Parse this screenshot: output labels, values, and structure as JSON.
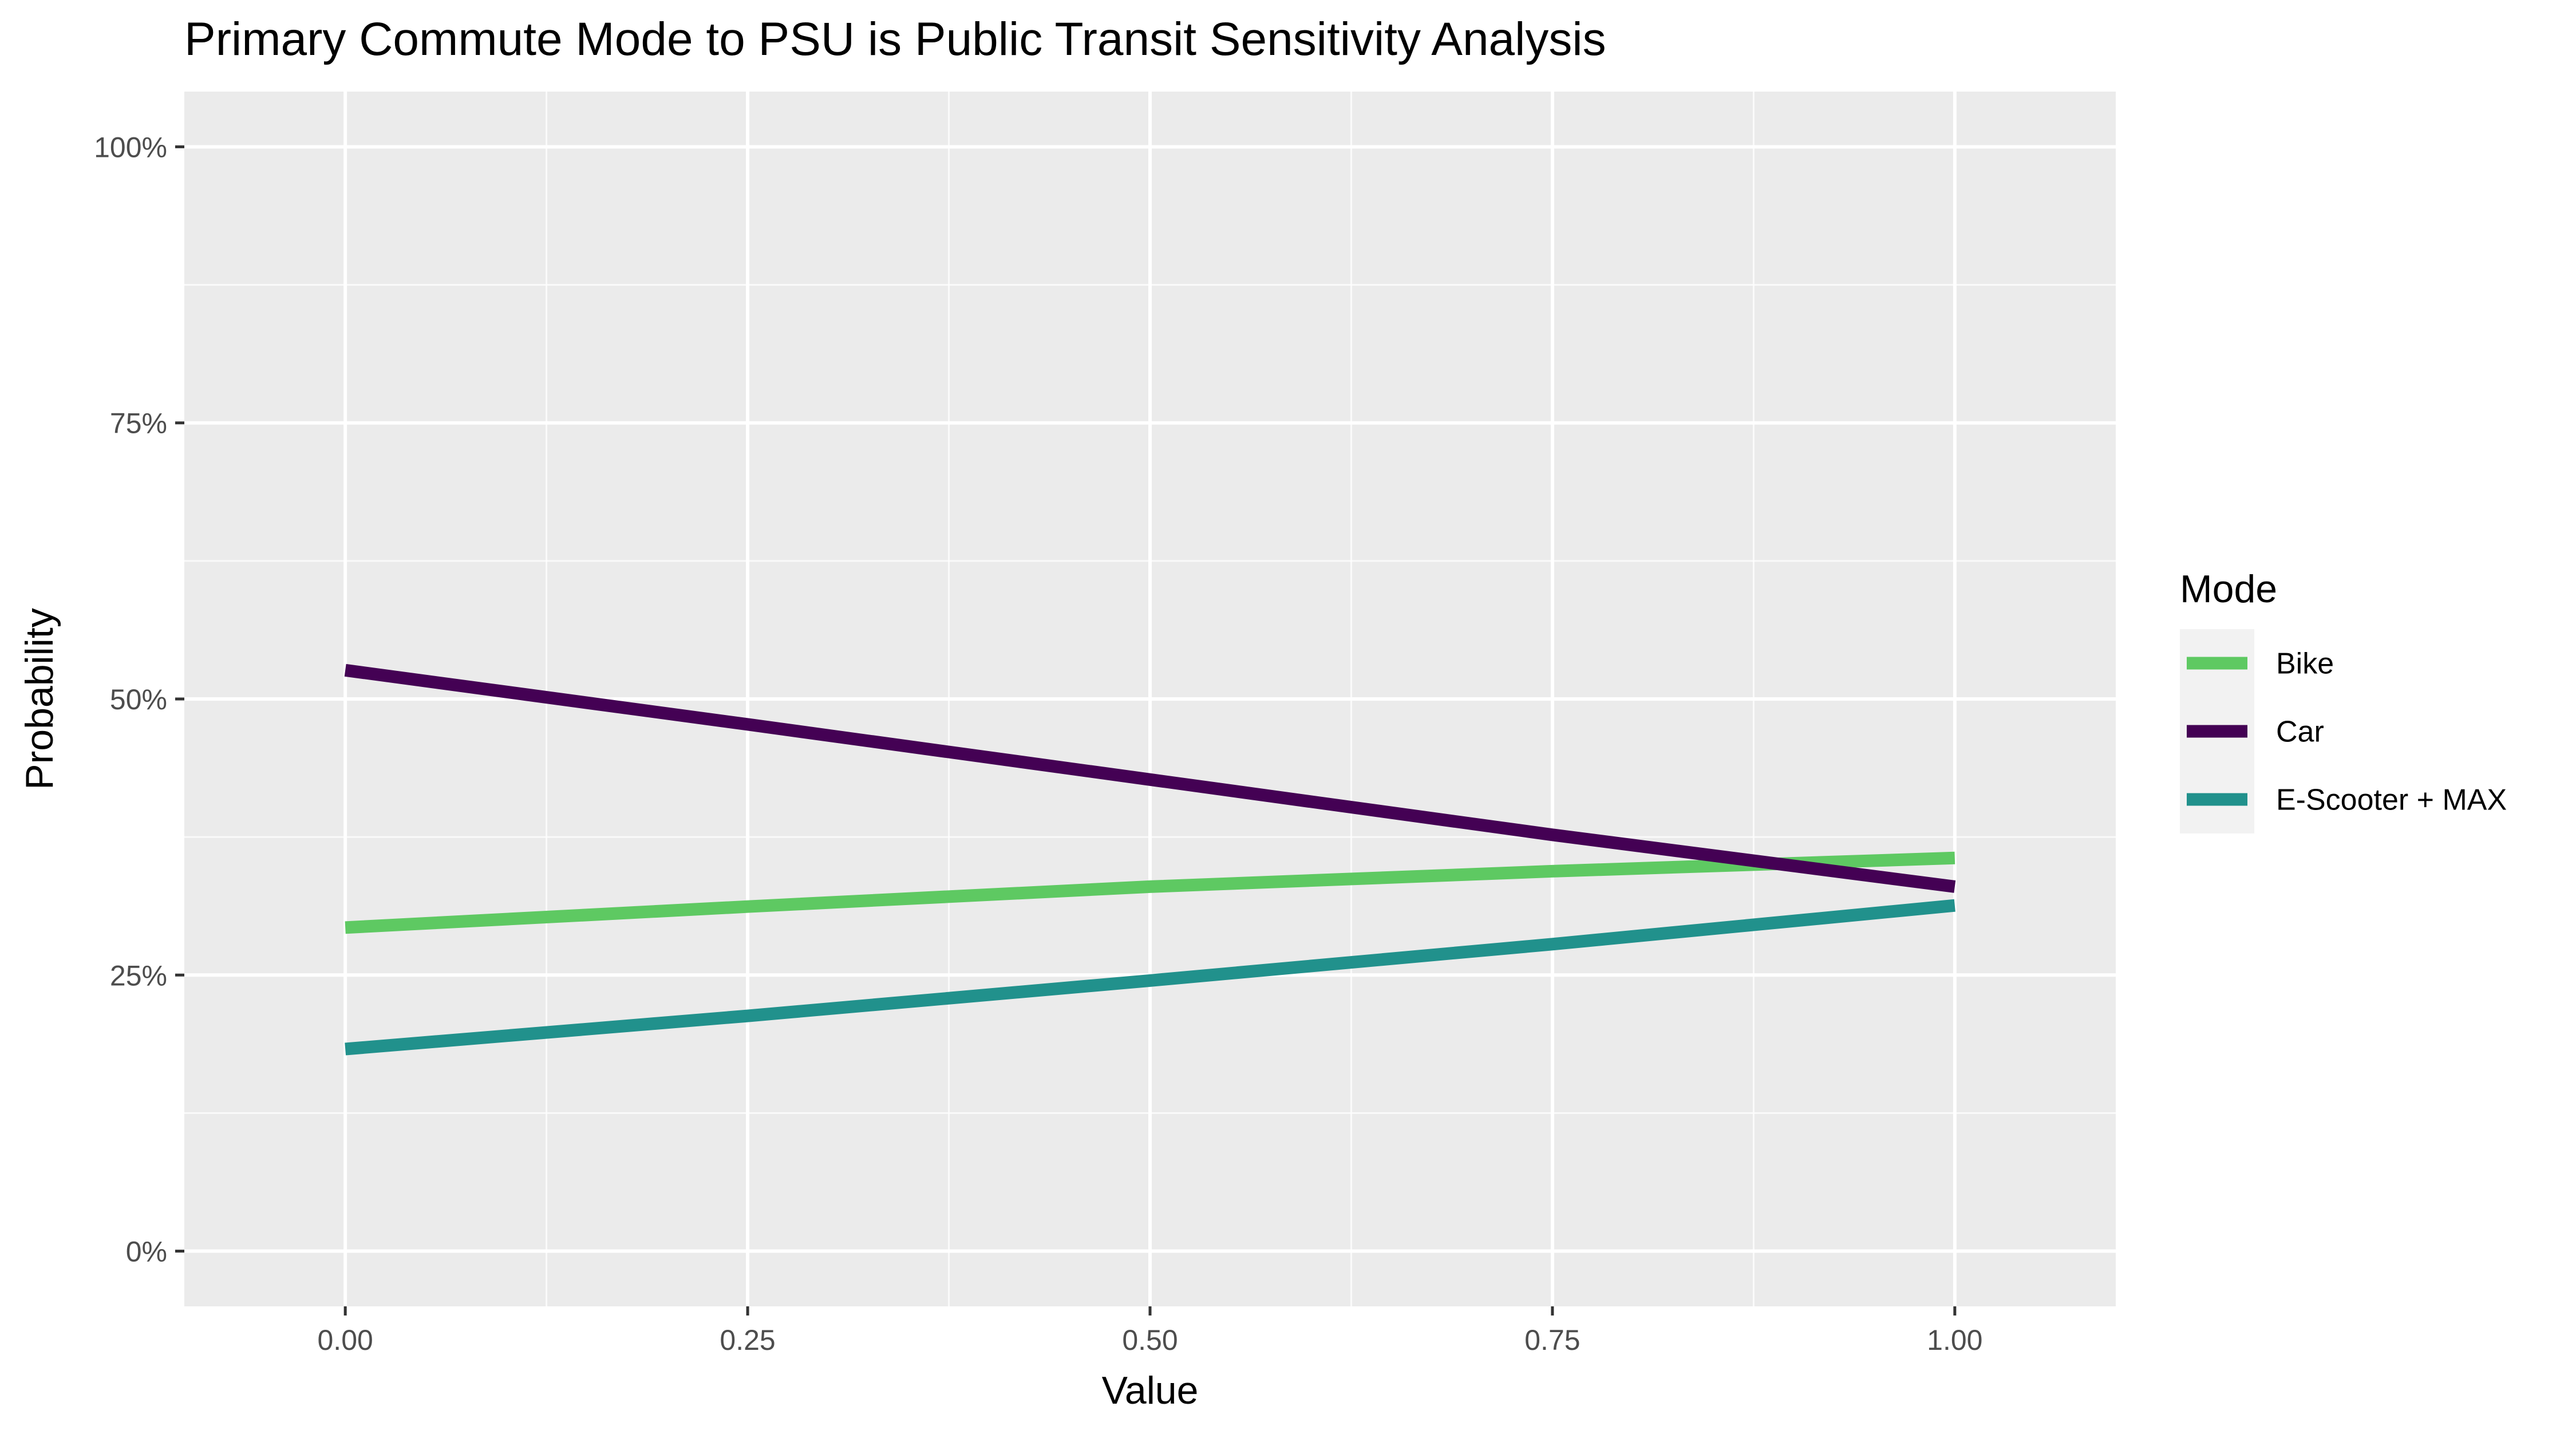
{
  "chart_data": {
    "type": "line",
    "title": "Primary Commute Mode to PSU is Public Transit Sensitivity Analysis",
    "xlabel": "Value",
    "ylabel": "Probability",
    "xlim": [
      -0.1,
      1.1
    ],
    "ylim": [
      -0.05,
      1.05
    ],
    "x_ticks": [
      0.0,
      0.25,
      0.5,
      0.75,
      1.0
    ],
    "x_tick_labels": [
      "0.00",
      "0.25",
      "0.50",
      "0.75",
      "1.00"
    ],
    "x_minor_ticks": [
      0.125,
      0.375,
      0.625,
      0.875
    ],
    "y_ticks": [
      0.0,
      0.25,
      0.5,
      0.75,
      1.0
    ],
    "y_tick_labels": [
      "0%",
      "25%",
      "50%",
      "75%",
      "100%"
    ],
    "y_minor_ticks": [
      0.125,
      0.375,
      0.625,
      0.875
    ],
    "grid": true,
    "panel_background": "#ebebeb",
    "legend": {
      "title": "Mode",
      "position": "right"
    },
    "series": [
      {
        "name": "Bike",
        "color": "#5ec962",
        "x": [
          0.0,
          0.25,
          0.5,
          0.75,
          1.0
        ],
        "values": [
          0.293,
          0.312,
          0.33,
          0.344,
          0.356
        ]
      },
      {
        "name": "Car",
        "color": "#440154",
        "x": [
          0.0,
          0.25,
          0.5,
          0.75,
          1.0
        ],
        "values": [
          0.526,
          0.477,
          0.427,
          0.377,
          0.33
        ]
      },
      {
        "name": "E-Scooter + MAX",
        "color": "#21918c",
        "x": [
          0.0,
          0.25,
          0.5,
          0.75,
          1.0
        ],
        "values": [
          0.183,
          0.213,
          0.245,
          0.278,
          0.313
        ]
      }
    ]
  }
}
